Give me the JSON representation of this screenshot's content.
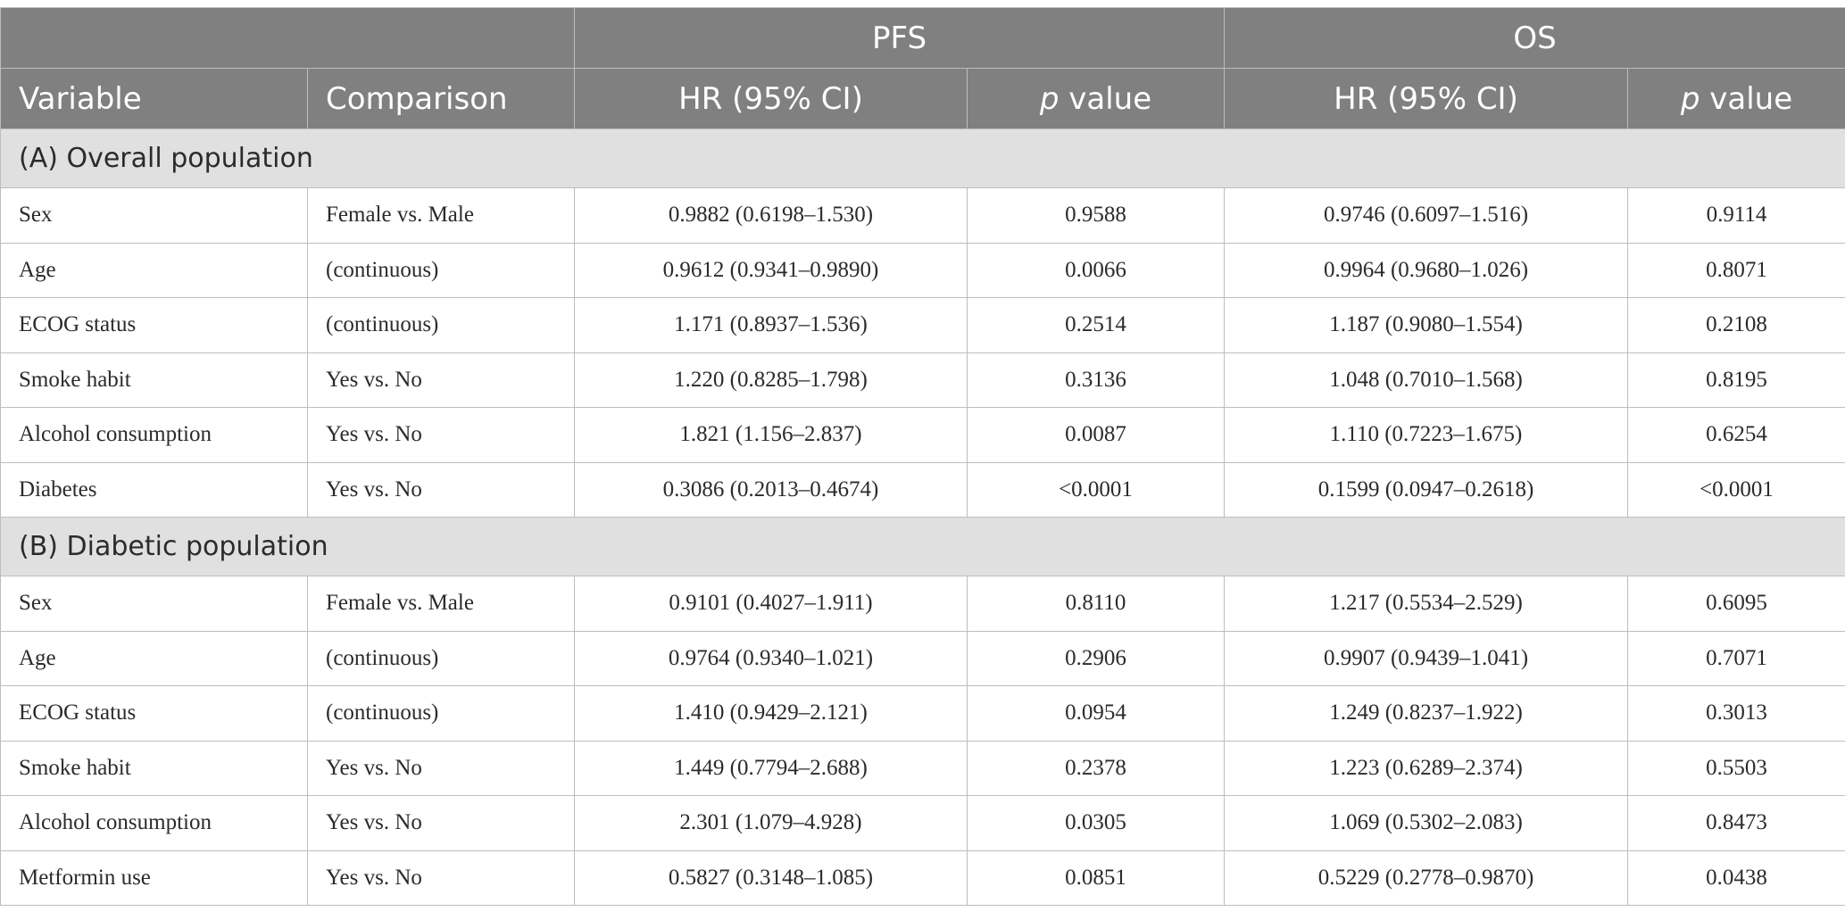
{
  "header": {
    "group_pfs": "PFS",
    "group_os": "OS",
    "col_variable": "Variable",
    "col_comparison": "Comparison",
    "col_hr_pfs": "HR (95% CI)",
    "col_p_pfs_italic": "p",
    "col_p_pfs_rest": " value",
    "col_hr_os": "HR (95% CI)",
    "col_p_os_italic": "p",
    "col_p_os_rest": " value"
  },
  "sections": [
    {
      "title": "(A) Overall population",
      "rows": [
        {
          "variable": "Sex",
          "comparison": "Female vs. Male",
          "pfs_hr": "0.9882 (0.6198–1.530)",
          "pfs_p": "0.9588",
          "os_hr": "0.9746 (0.6097–1.516)",
          "os_p": "0.9114"
        },
        {
          "variable": "Age",
          "comparison": "(continuous)",
          "pfs_hr": "0.9612 (0.9341–0.9890)",
          "pfs_p": "0.0066",
          "os_hr": "0.9964 (0.9680–1.026)",
          "os_p": "0.8071"
        },
        {
          "variable": "ECOG status",
          "comparison": "(continuous)",
          "pfs_hr": "1.171 (0.8937–1.536)",
          "pfs_p": "0.2514",
          "os_hr": "1.187 (0.9080–1.554)",
          "os_p": "0.2108"
        },
        {
          "variable": "Smoke habit",
          "comparison": "Yes vs. No",
          "pfs_hr": "1.220 (0.8285–1.798)",
          "pfs_p": "0.3136",
          "os_hr": "1.048 (0.7010–1.568)",
          "os_p": "0.8195"
        },
        {
          "variable": "Alcohol consumption",
          "comparison": "Yes vs. No",
          "pfs_hr": "1.821 (1.156–2.837)",
          "pfs_p": "0.0087",
          "os_hr": "1.110 (0.7223–1.675)",
          "os_p": "0.6254"
        },
        {
          "variable": "Diabetes",
          "comparison": "Yes vs. No",
          "pfs_hr": "0.3086 (0.2013–0.4674)",
          "pfs_p": "<0.0001",
          "os_hr": "0.1599 (0.0947–0.2618)",
          "os_p": "<0.0001"
        }
      ]
    },
    {
      "title": "(B) Diabetic population",
      "rows": [
        {
          "variable": "Sex",
          "comparison": "Female vs. Male",
          "pfs_hr": "0.9101 (0.4027–1.911)",
          "pfs_p": "0.8110",
          "os_hr": "1.217 (0.5534–2.529)",
          "os_p": "0.6095"
        },
        {
          "variable": "Age",
          "comparison": "(continuous)",
          "pfs_hr": "0.9764 (0.9340–1.021)",
          "pfs_p": "0.2906",
          "os_hr": "0.9907 (0.9439–1.041)",
          "os_p": "0.7071"
        },
        {
          "variable": "ECOG status",
          "comparison": "(continuous)",
          "pfs_hr": "1.410 (0.9429–2.121)",
          "pfs_p": "0.0954",
          "os_hr": "1.249 (0.8237–1.922)",
          "os_p": "0.3013"
        },
        {
          "variable": "Smoke habit",
          "comparison": "Yes vs. No",
          "pfs_hr": "1.449 (0.7794–2.688)",
          "pfs_p": "0.2378",
          "os_hr": "1.223 (0.6289–2.374)",
          "os_p": "0.5503"
        },
        {
          "variable": "Alcohol consumption",
          "comparison": "Yes vs. No",
          "pfs_hr": "2.301 (1.079–4.928)",
          "pfs_p": "0.0305",
          "os_hr": "1.069 (0.5302–2.083)",
          "os_p": "0.8473"
        },
        {
          "variable": "Metformin use",
          "comparison": "Yes vs. No",
          "pfs_hr": "0.5827 (0.3148–1.085)",
          "pfs_p": "0.0851",
          "os_hr": "0.5229 (0.2778–0.9870)",
          "os_p": "0.0438"
        }
      ]
    }
  ]
}
